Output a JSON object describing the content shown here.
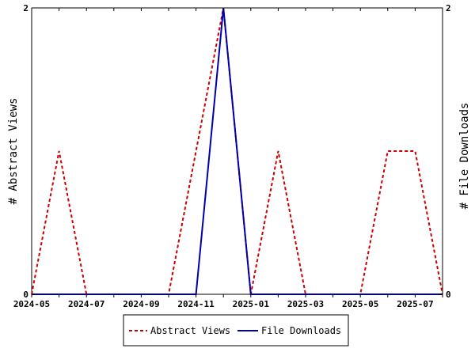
{
  "chart_data": {
    "type": "line",
    "x": [
      "2024-05",
      "2024-06",
      "2024-07",
      "2024-08",
      "2024-09",
      "2024-10",
      "2024-11",
      "2024-12",
      "2025-01",
      "2025-02",
      "2025-03",
      "2025-04",
      "2025-05",
      "2025-06",
      "2025-07",
      "2025-08"
    ],
    "x_tick_labels": [
      "2024-05",
      "2024-07",
      "2024-09",
      "2024-11",
      "2025-01",
      "2025-03",
      "2025-05",
      "2025-07"
    ],
    "series": [
      {
        "name": "Abstract Views",
        "axis": "left",
        "color": "#cc0000",
        "dash": true,
        "values": [
          0,
          1,
          0,
          0,
          0,
          0,
          1,
          2,
          0,
          1,
          0,
          0,
          0,
          1,
          1,
          0
        ]
      },
      {
        "name": "File Downloads",
        "axis": "right",
        "color": "#0000aa",
        "dash": false,
        "values": [
          0,
          0,
          0,
          0,
          0,
          0,
          0,
          2,
          0,
          0,
          0,
          0,
          0,
          0,
          0,
          0
        ]
      }
    ],
    "ylabel": "# Abstract Views",
    "y2label": "# File Downloads",
    "ylim": [
      0,
      2
    ],
    "y2lim": [
      0,
      2
    ],
    "y_ticks": [
      "0",
      "2"
    ],
    "y2_ticks": [
      "0",
      "2"
    ],
    "grid": false,
    "legend_position": "bottom"
  }
}
